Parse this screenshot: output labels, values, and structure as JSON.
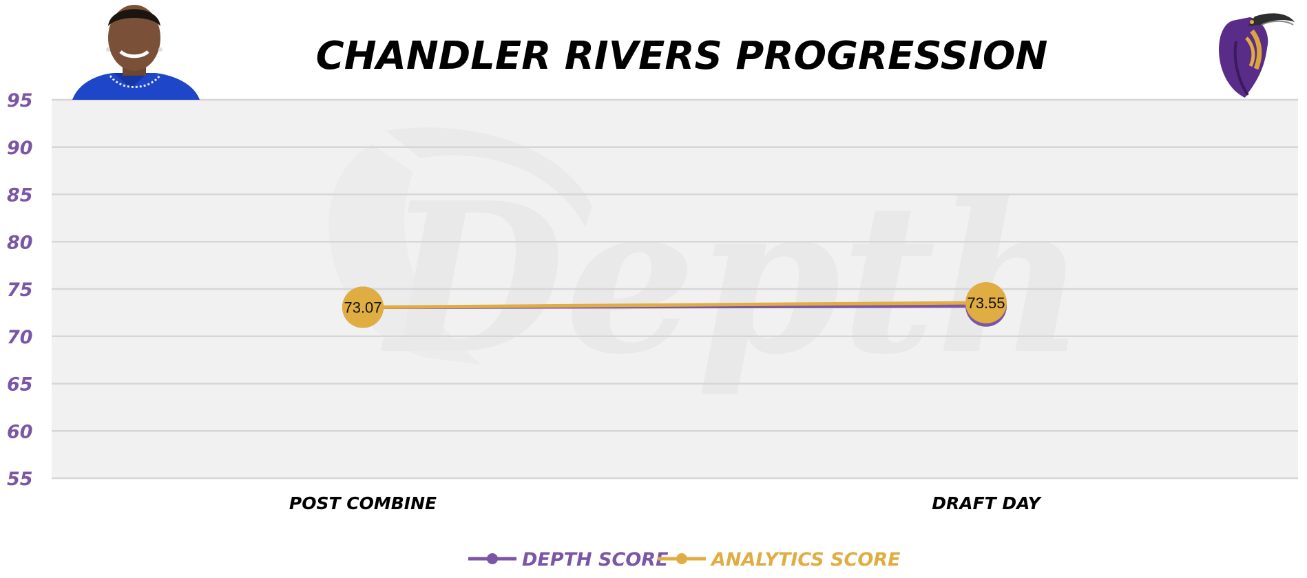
{
  "colors": {
    "depth": "#7b55a6",
    "analytics": "#e0ad42",
    "plot_bg": "#f1f1f1",
    "grid": "#d6d6d6",
    "ytick": "#7b55a6"
  },
  "icons": {
    "player_photo": "player-headshot",
    "team_logo": "purple-raven-logo",
    "watermark": "depth-watermark"
  },
  "chart_data": {
    "type": "line",
    "title": "CHANDLER RIVERS PROGRESSION",
    "categories": [
      "POST COMBINE",
      "DRAFT DAY"
    ],
    "series": [
      {
        "name": "DEPTH SCORE",
        "values": [
          73.07,
          73.2
        ],
        "color": "#7b55a6"
      },
      {
        "name": "ANALYTICS SCORE",
        "values": [
          73.07,
          73.55
        ],
        "color": "#e0ad42"
      }
    ],
    "data_labels": [
      "73.07",
      "73.55"
    ],
    "yticks": [
      95,
      90,
      85,
      80,
      75,
      70,
      65,
      60,
      55
    ],
    "ylim": [
      55,
      95
    ],
    "grid": true,
    "legend_position": "bottom-center",
    "watermark_text": "Depth"
  }
}
